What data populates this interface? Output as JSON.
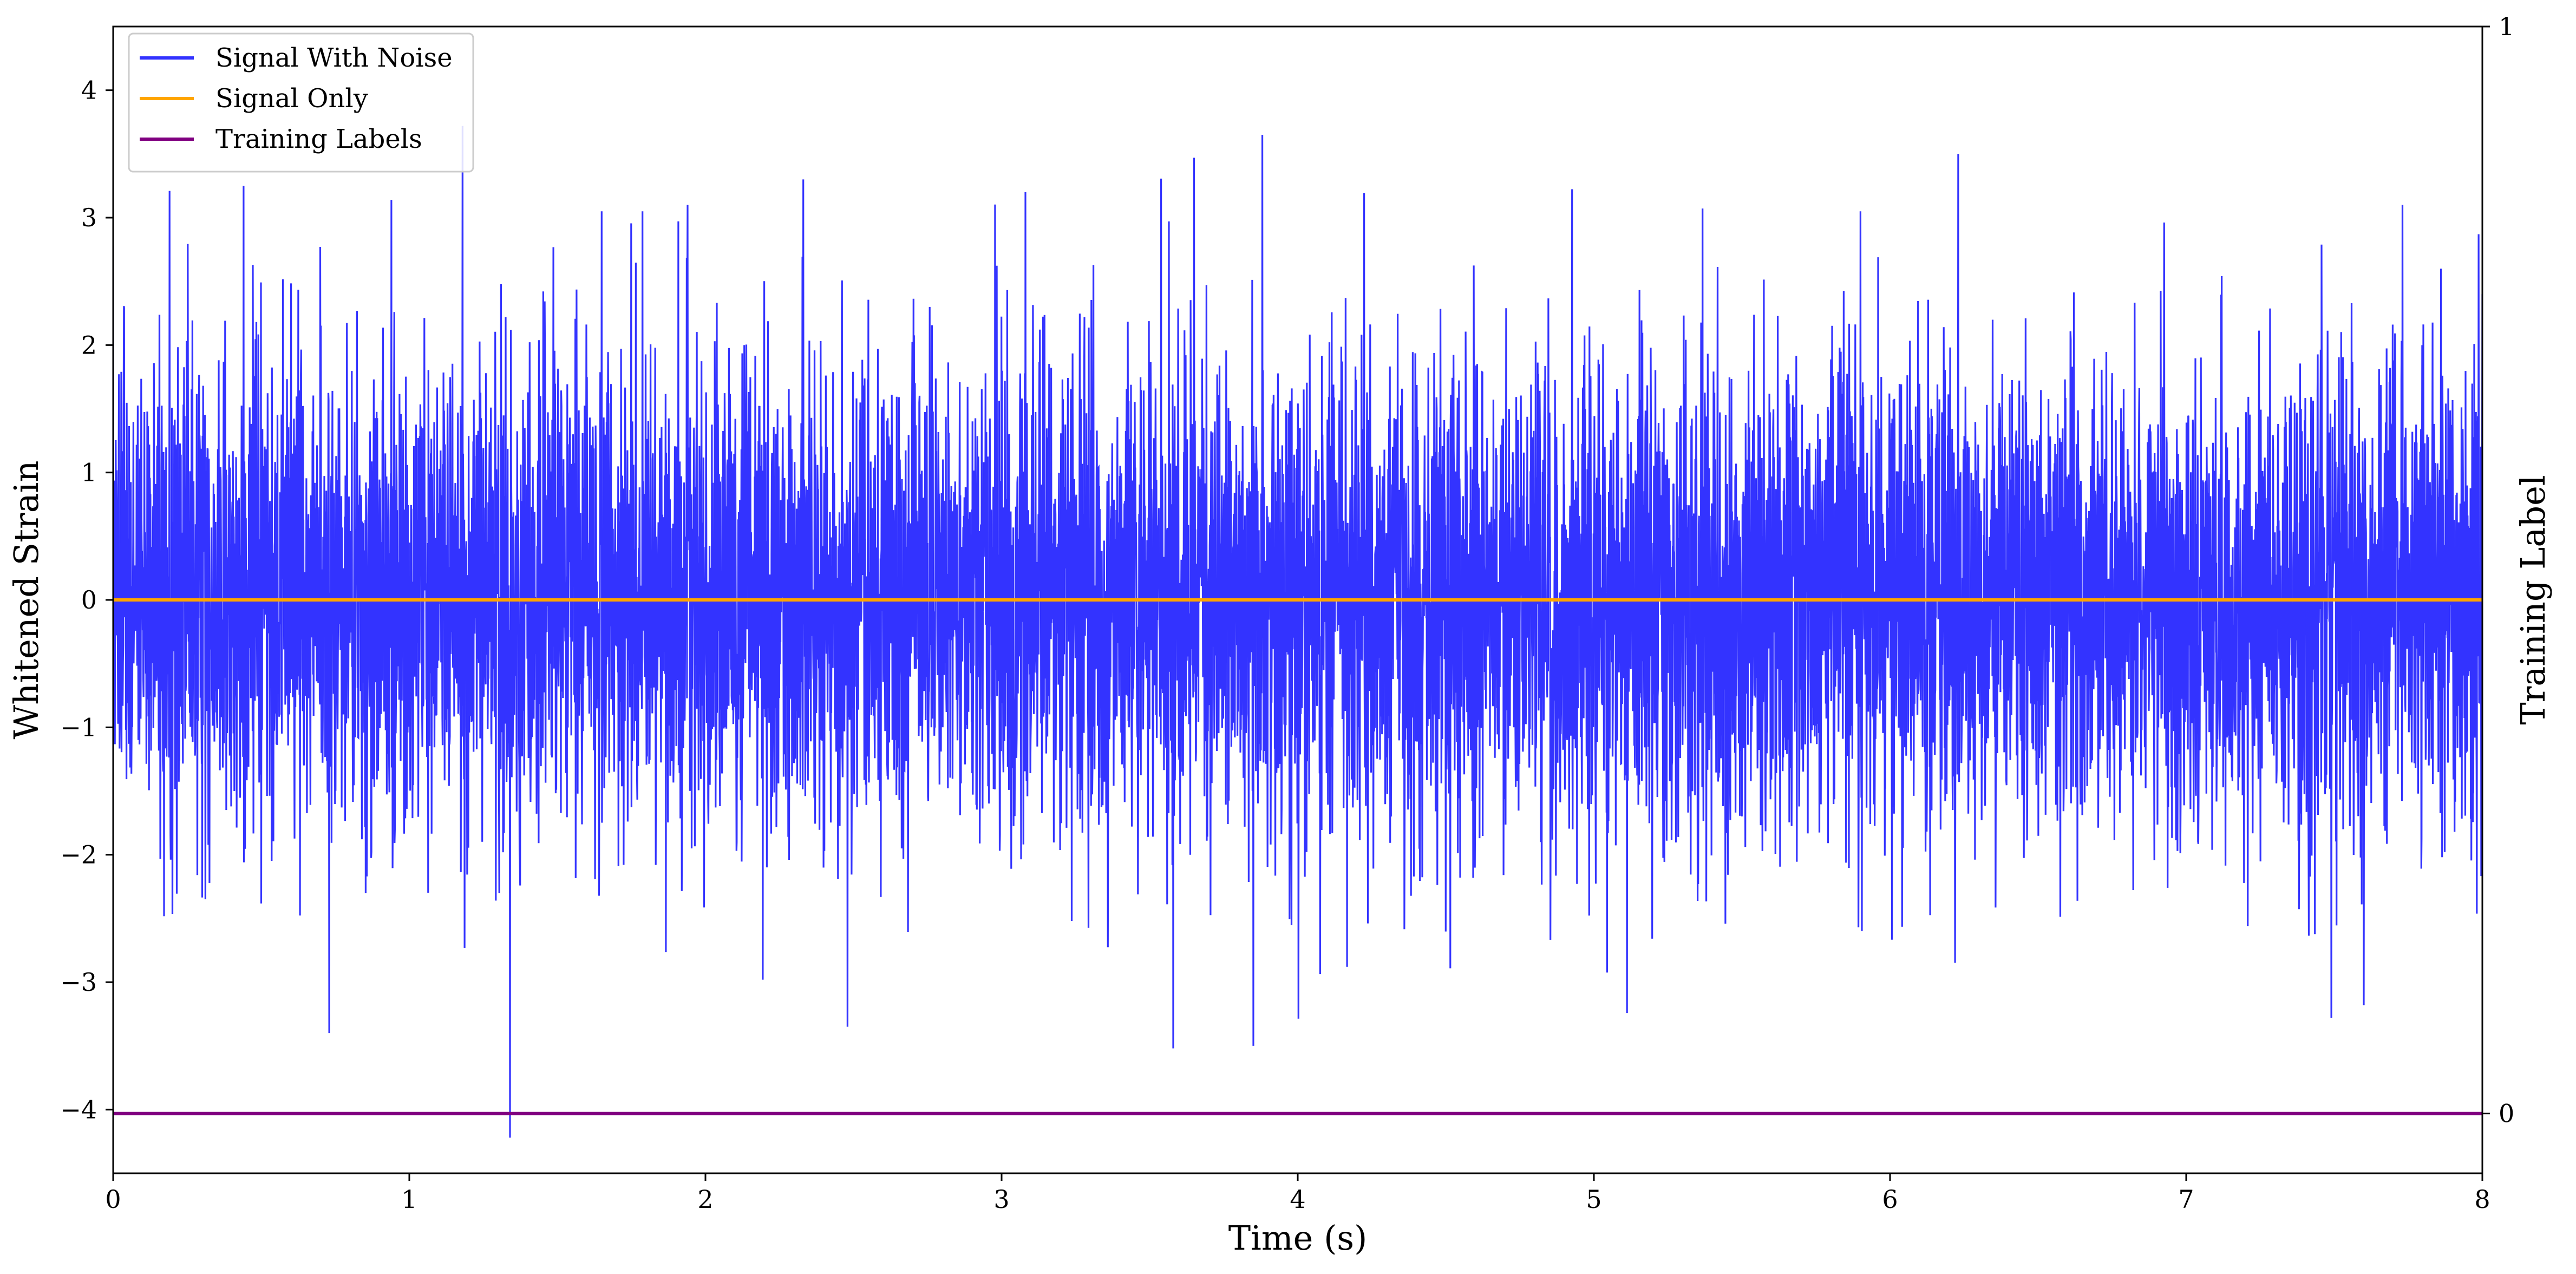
{
  "chart_data": {
    "type": "line",
    "xlabel": "Time (s)",
    "ylabel": "Whitened Strain",
    "y2label": "Training Label",
    "xlim": [
      0,
      8
    ],
    "ylim": [
      -4.5,
      4.5
    ],
    "y2lim": [
      -0.055,
      1.0
    ],
    "xticks": [
      "0",
      "1",
      "2",
      "3",
      "4",
      "5",
      "6",
      "7",
      "8"
    ],
    "yticks": [
      "−4",
      "−3",
      "−2",
      "−1",
      "0",
      "1",
      "2",
      "3",
      "4"
    ],
    "y2ticks": [
      "0",
      "1"
    ],
    "grid": false,
    "legend_position": "top-left",
    "series": [
      {
        "name": "Signal With Noise",
        "color": "#3333ff",
        "axis": "left",
        "kind": "noise",
        "approx_std": 1.0,
        "approx_range": [
          -4.22,
          3.7
        ],
        "notable_points": [
          {
            "x": 0.0,
            "y": 2.78
          },
          {
            "x": 0.19,
            "y": 3.21
          },
          {
            "x": 0.44,
            "y": 3.25
          },
          {
            "x": 0.73,
            "y": -3.4
          },
          {
            "x": 0.94,
            "y": 3.14
          },
          {
            "x": 1.18,
            "y": 3.72
          },
          {
            "x": 1.34,
            "y": -4.22
          },
          {
            "x": 1.65,
            "y": 3.05
          },
          {
            "x": 1.94,
            "y": 3.1
          },
          {
            "x": 2.33,
            "y": 3.3
          },
          {
            "x": 2.48,
            "y": -3.35
          },
          {
            "x": 3.08,
            "y": 3.2
          },
          {
            "x": 3.58,
            "y": -3.52
          },
          {
            "x": 3.65,
            "y": 3.47
          },
          {
            "x": 3.85,
            "y": -3.5
          },
          {
            "x": 3.88,
            "y": 3.65
          },
          {
            "x": 5.9,
            "y": 3.05
          },
          {
            "x": 6.23,
            "y": 3.5
          },
          {
            "x": 7.49,
            "y": -3.28
          },
          {
            "x": 7.6,
            "y": -3.18
          },
          {
            "x": 7.73,
            "y": 3.1
          },
          {
            "x": 8.0,
            "y": 2.4
          }
        ]
      },
      {
        "name": "Signal Only",
        "color": "#ffa500",
        "axis": "left",
        "x": [
          0,
          8
        ],
        "y": [
          0,
          0
        ]
      },
      {
        "name": "Training Labels",
        "color": "#800080",
        "axis": "right",
        "x": [
          0,
          8
        ],
        "y": [
          0,
          0
        ]
      }
    ]
  }
}
